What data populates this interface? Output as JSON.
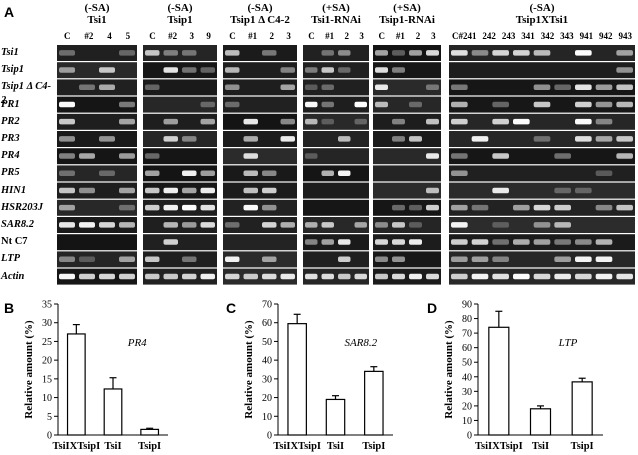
{
  "panel_letters": {
    "a": "A",
    "b": "B",
    "c": "C",
    "d": "D"
  },
  "gels": [
    {
      "cond": "(-SA)",
      "name": "Tsi1",
      "lanes": [
        "C",
        "#2",
        "4",
        "5"
      ]
    },
    {
      "cond": "(-SA)",
      "name": "Tsip1",
      "lanes": [
        "C",
        "#2",
        "3",
        "9"
      ]
    },
    {
      "cond": "(-SA)",
      "name": "Tsip1 Δ C4-2",
      "lanes": [
        "C",
        "#1",
        "2",
        "3"
      ]
    },
    {
      "cond": "(+SA)",
      "name": "Tsi1-RNAi",
      "lanes": [
        "C",
        "#1",
        "2",
        "3"
      ]
    },
    {
      "cond": "(+SA)",
      "name": "Tsip1-RNAi",
      "lanes": [
        "C",
        "#1",
        "2",
        "3"
      ]
    },
    {
      "cond": "(-SA)",
      "name": "Tsip1XTsi1",
      "lanes": [
        "C#241",
        "242",
        "243",
        "341",
        "342",
        "343",
        "941",
        "942",
        "943"
      ]
    }
  ],
  "rows": [
    {
      "label": "Tsi1",
      "italic": true
    },
    {
      "label": "Tsip1",
      "italic": true
    },
    {
      "label": "Tsip1 Δ C4-2",
      "italic": true
    },
    {
      "label": "PR1",
      "italic": true
    },
    {
      "label": "PR2",
      "italic": true
    },
    {
      "label": "PR3",
      "italic": true
    },
    {
      "label": "PR4",
      "italic": true
    },
    {
      "label": "PR5",
      "italic": true
    },
    {
      "label": "HIN1",
      "italic": true
    },
    {
      "label": "HSR203J",
      "italic": true
    },
    {
      "label": "SAR8.2",
      "italic": true
    },
    {
      "label": "Nt C7",
      "italic": false
    },
    {
      "label": "LTP",
      "italic": true
    },
    {
      "label": "Actin",
      "italic": true
    }
  ],
  "chart_data": [
    {
      "type": "bar",
      "panel": "B",
      "gene": "PR4",
      "ylabel": "Relative amount (%)",
      "categories": [
        "TsiIXTsipI",
        "TsiI",
        "TsipI"
      ],
      "values": [
        27,
        12.3,
        1.5
      ],
      "errors": [
        2.5,
        3,
        0.3
      ],
      "ylim": [
        0,
        35
      ],
      "yticks": [
        0,
        5,
        10,
        15,
        20,
        25,
        30,
        35
      ]
    },
    {
      "type": "bar",
      "panel": "C",
      "gene": "SAR8.2",
      "ylabel": "Relative amount (%)",
      "categories": [
        "TsiIXTsipI",
        "TsiI",
        "TsipI"
      ],
      "values": [
        59.5,
        19,
        34
      ],
      "errors": [
        5,
        2,
        2.5
      ],
      "ylim": [
        0,
        70
      ],
      "yticks": [
        0,
        10,
        20,
        30,
        40,
        50,
        60,
        70
      ]
    },
    {
      "type": "bar",
      "panel": "D",
      "gene": "LTP",
      "ylabel": "Relative amount (%)",
      "categories": [
        "TsiIXTsipI",
        "TsiI",
        "TsipI"
      ],
      "values": [
        74,
        18,
        36.5
      ],
      "errors": [
        11,
        2,
        2.5
      ],
      "ylim": [
        0,
        90
      ],
      "yticks": [
        0,
        10,
        20,
        30,
        40,
        50,
        60,
        70,
        80,
        90
      ]
    }
  ]
}
